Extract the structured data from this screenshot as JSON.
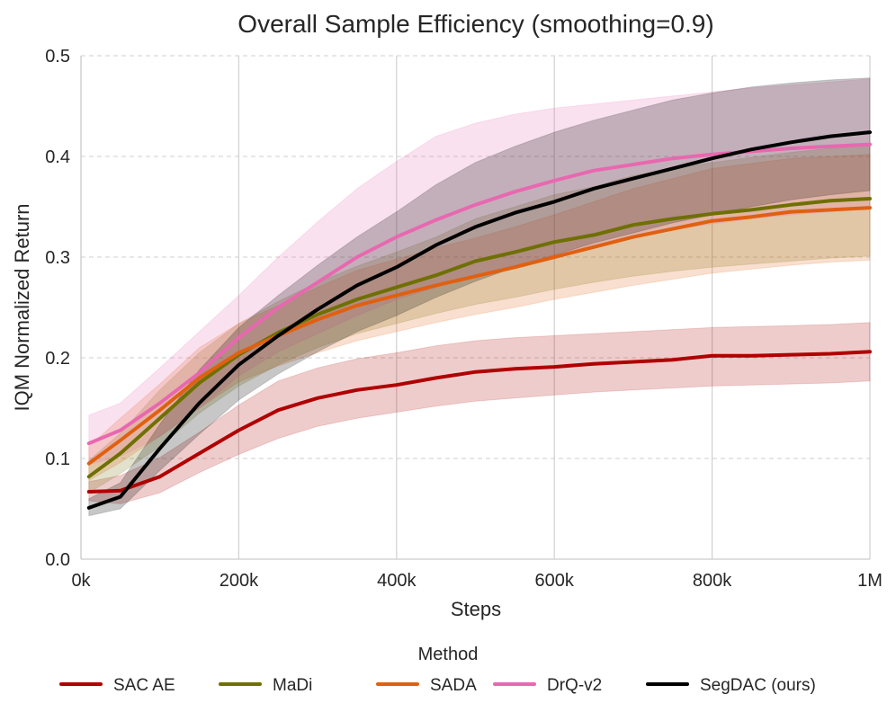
{
  "chart_data": {
    "type": "line",
    "title": "Overall Sample Efficiency (smoothing=0.9)",
    "xlabel": "Steps",
    "ylabel": "IQM Normalized Return",
    "xlim": [
      0,
      1000000
    ],
    "ylim": [
      0,
      0.5
    ],
    "x_ticks": [
      {
        "value": 0,
        "label": "0k"
      },
      {
        "value": 200000,
        "label": "200k"
      },
      {
        "value": 400000,
        "label": "400k"
      },
      {
        "value": 600000,
        "label": "600k"
      },
      {
        "value": 800000,
        "label": "800k"
      },
      {
        "value": 1000000,
        "label": "1M"
      }
    ],
    "y_ticks": [
      {
        "value": 0.0,
        "label": "0.0"
      },
      {
        "value": 0.1,
        "label": "0.1"
      },
      {
        "value": 0.2,
        "label": "0.2"
      },
      {
        "value": 0.3,
        "label": "0.3"
      },
      {
        "value": 0.4,
        "label": "0.4"
      },
      {
        "value": 0.5,
        "label": "0.5"
      }
    ],
    "grid": true,
    "legend_title": "Method",
    "legend_position": "bottom",
    "x": [
      10000,
      50000,
      100000,
      150000,
      200000,
      250000,
      300000,
      350000,
      400000,
      450000,
      500000,
      550000,
      600000,
      650000,
      700000,
      750000,
      800000,
      850000,
      900000,
      950000,
      1000000
    ],
    "series": [
      {
        "name": "SAC AE",
        "color": "#b00000",
        "values": [
          0.067,
          0.068,
          0.082,
          0.105,
          0.128,
          0.148,
          0.16,
          0.168,
          0.173,
          0.18,
          0.186,
          0.189,
          0.191,
          0.194,
          0.196,
          0.198,
          0.202,
          0.202,
          0.203,
          0.204,
          0.206
        ],
        "lower": [
          0.058,
          0.055,
          0.066,
          0.086,
          0.104,
          0.12,
          0.132,
          0.14,
          0.146,
          0.152,
          0.157,
          0.16,
          0.163,
          0.166,
          0.168,
          0.17,
          0.172,
          0.173,
          0.174,
          0.175,
          0.177
        ],
        "upper": [
          0.077,
          0.083,
          0.101,
          0.126,
          0.153,
          0.177,
          0.19,
          0.199,
          0.205,
          0.212,
          0.217,
          0.22,
          0.222,
          0.224,
          0.226,
          0.228,
          0.23,
          0.231,
          0.232,
          0.233,
          0.235
        ]
      },
      {
        "name": "MaDi",
        "color": "#6e7000",
        "values": [
          0.082,
          0.105,
          0.14,
          0.175,
          0.203,
          0.225,
          0.243,
          0.258,
          0.27,
          0.282,
          0.296,
          0.305,
          0.315,
          0.322,
          0.332,
          0.338,
          0.343,
          0.347,
          0.352,
          0.356,
          0.358
        ],
        "lower": [
          0.066,
          0.085,
          0.112,
          0.145,
          0.172,
          0.193,
          0.21,
          0.224,
          0.234,
          0.244,
          0.253,
          0.26,
          0.268,
          0.275,
          0.281,
          0.286,
          0.29,
          0.293,
          0.296,
          0.299,
          0.301
        ],
        "upper": [
          0.098,
          0.125,
          0.168,
          0.205,
          0.234,
          0.256,
          0.275,
          0.291,
          0.305,
          0.32,
          0.338,
          0.35,
          0.362,
          0.37,
          0.381,
          0.388,
          0.394,
          0.399,
          0.404,
          0.408,
          0.411
        ]
      },
      {
        "name": "SADA",
        "color": "#e06010",
        "values": [
          0.095,
          0.118,
          0.148,
          0.18,
          0.205,
          0.222,
          0.238,
          0.252,
          0.262,
          0.272,
          0.281,
          0.29,
          0.3,
          0.31,
          0.32,
          0.328,
          0.336,
          0.34,
          0.345,
          0.347,
          0.349
        ],
        "lower": [
          0.078,
          0.096,
          0.122,
          0.15,
          0.176,
          0.192,
          0.205,
          0.217,
          0.226,
          0.235,
          0.243,
          0.25,
          0.258,
          0.265,
          0.272,
          0.278,
          0.284,
          0.288,
          0.292,
          0.295,
          0.297
        ],
        "upper": [
          0.112,
          0.14,
          0.174,
          0.21,
          0.234,
          0.252,
          0.27,
          0.287,
          0.298,
          0.309,
          0.319,
          0.33,
          0.342,
          0.355,
          0.368,
          0.378,
          0.388,
          0.393,
          0.398,
          0.4,
          0.402
        ]
      },
      {
        "name": "DrQ-v2",
        "color": "#e868b0",
        "values": [
          0.115,
          0.128,
          0.155,
          0.185,
          0.22,
          0.25,
          0.275,
          0.3,
          0.32,
          0.337,
          0.352,
          0.365,
          0.376,
          0.386,
          0.392,
          0.398,
          0.402,
          0.405,
          0.408,
          0.41,
          0.412
        ],
        "lower": [
          0.094,
          0.102,
          0.122,
          0.15,
          0.182,
          0.206,
          0.224,
          0.242,
          0.258,
          0.27,
          0.282,
          0.292,
          0.302,
          0.312,
          0.32,
          0.327,
          0.333,
          0.338,
          0.342,
          0.345,
          0.348
        ],
        "upper": [
          0.143,
          0.155,
          0.19,
          0.226,
          0.262,
          0.3,
          0.335,
          0.368,
          0.395,
          0.42,
          0.433,
          0.442,
          0.448,
          0.452,
          0.456,
          0.46,
          0.464,
          0.468,
          0.471,
          0.474,
          0.477
        ]
      },
      {
        "name": "SegDAC (ours)",
        "color": "#000000",
        "values": [
          0.051,
          0.062,
          0.11,
          0.155,
          0.193,
          0.222,
          0.248,
          0.272,
          0.29,
          0.312,
          0.33,
          0.344,
          0.355,
          0.368,
          0.378,
          0.388,
          0.398,
          0.407,
          0.414,
          0.42,
          0.424
        ],
        "lower": [
          0.043,
          0.05,
          0.088,
          0.124,
          0.158,
          0.184,
          0.206,
          0.226,
          0.242,
          0.26,
          0.276,
          0.29,
          0.302,
          0.314,
          0.324,
          0.334,
          0.342,
          0.35,
          0.357,
          0.362,
          0.366
        ],
        "upper": [
          0.06,
          0.076,
          0.134,
          0.188,
          0.23,
          0.262,
          0.292,
          0.32,
          0.345,
          0.372,
          0.394,
          0.41,
          0.424,
          0.436,
          0.446,
          0.456,
          0.463,
          0.469,
          0.473,
          0.476,
          0.478
        ]
      }
    ]
  }
}
